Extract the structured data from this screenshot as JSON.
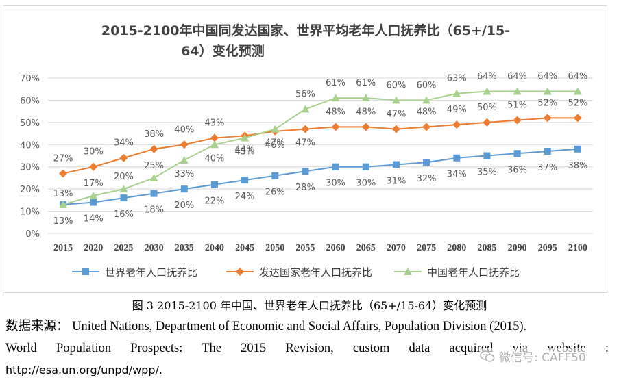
{
  "chart_data": {
    "type": "line",
    "title_line1": "2015-2100年中国同发达国家、世界平均老年人口抚养比（65+/15-",
    "title_line2": "64）变化预测",
    "categories": [
      "2015",
      "2020",
      "2025",
      "2030",
      "2035",
      "2040",
      "2045",
      "2050",
      "2055",
      "2060",
      "2065",
      "2070",
      "2075",
      "2080",
      "2085",
      "2090",
      "2095",
      "2100"
    ],
    "yticks": [
      "0%",
      "10%",
      "20%",
      "30%",
      "40%",
      "50%",
      "60%",
      "70%"
    ],
    "ylim": [
      0,
      70
    ],
    "series": [
      {
        "name": "世界老年人口抚养比",
        "color": "#5b9bd5",
        "marker": "square",
        "values": [
          13,
          14,
          16,
          18,
          20,
          22,
          24,
          26,
          28,
          30,
          30,
          31,
          32,
          34,
          35,
          36,
          37,
          38
        ],
        "labels": [
          "13%",
          "14%",
          "16%",
          "18%",
          "20%",
          "22%",
          "24%",
          "26%",
          "28%",
          "30%",
          "30%",
          "31%",
          "32%",
          "34%",
          "35%",
          "36%",
          "37%",
          "38%"
        ]
      },
      {
        "name": "发达国家老年人口抚养比",
        "color": "#ed7d31",
        "marker": "diamond",
        "values": [
          27,
          30,
          34,
          38,
          40,
          43,
          44,
          46,
          47,
          48,
          48,
          47,
          48,
          49,
          50,
          51,
          52,
          52
        ],
        "labels": [
          "27%",
          "30%",
          "34%",
          "38%",
          "40%",
          "43%",
          "44%",
          "46%",
          "47%",
          "48%",
          "48%",
          "47%",
          "48%",
          "49%",
          "50%",
          "51%",
          "52%",
          "52%"
        ]
      },
      {
        "name": "中国老年人口抚养比",
        "color": "#a9d18e",
        "marker": "triangle",
        "values": [
          13,
          17,
          20,
          25,
          33,
          40,
          43,
          47,
          56,
          61,
          61,
          60,
          60,
          63,
          64,
          64,
          64,
          64
        ],
        "labels": [
          "13%",
          "17%",
          "20%",
          "25%",
          "33%",
          "40%",
          "43%",
          "47%",
          "56%",
          "61%",
          "61%",
          "60%",
          "60%",
          "63%",
          "64%",
          "64%",
          "64%",
          "64%"
        ]
      }
    ],
    "legend_position": "bottom",
    "grid": true
  },
  "caption": "图 3 2015-2100 年中国、世界老年人口抚养比（65+/15-64）变化预测",
  "source": {
    "line1": "数据来源： United Nations, Department of Economic and Social Affairs, Population Division (2015).",
    "line2": "World Population Prospects: The 2015 Revision, custom data acquired via website :",
    "line3": "http://esa.un.org/unpd/wpp/."
  },
  "watermark": "微信号: CAFF50"
}
